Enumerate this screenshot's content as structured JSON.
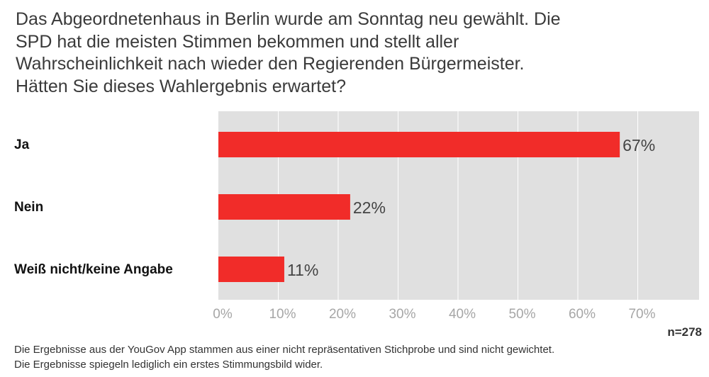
{
  "question": "Das Abgeordnetenhaus in Berlin wurde am Sonntag neu gewählt. Die\nSPD hat die meisten Stimmen bekommen und stellt aller\nWahrscheinlichkeit nach wieder den Regierenden Bürgermeister.\nHätten Sie dieses Wahlergebnis erwartet?",
  "chart_data": {
    "type": "bar",
    "orientation": "horizontal",
    "categories": [
      "Ja",
      "Nein",
      "Weiß nicht/keine Angabe"
    ],
    "values": [
      67,
      22,
      11
    ],
    "value_labels": [
      "67%",
      "22%",
      "11%"
    ],
    "xlim": [
      0,
      80
    ],
    "x_ticks": [
      0,
      10,
      20,
      30,
      40,
      50,
      60,
      70
    ],
    "x_tick_labels": [
      "0%",
      "10%",
      "20%",
      "30%",
      "40%",
      "50%",
      "60%",
      "70%"
    ],
    "grid": true,
    "sample_size": "n=278",
    "colors": {
      "bar": "#f12c29",
      "plot_background": "#e0e0e0",
      "gridline": "#ffffff",
      "tick_label": "#a6a6a6"
    }
  },
  "footnotes": [
    "Die Ergebnisse aus der YouGov App stammen aus einer nicht repräsentativen Stichprobe und sind nicht gewichtet.",
    "Die Ergebnisse spiegeln lediglich ein erstes Stimmungsbild wider."
  ]
}
